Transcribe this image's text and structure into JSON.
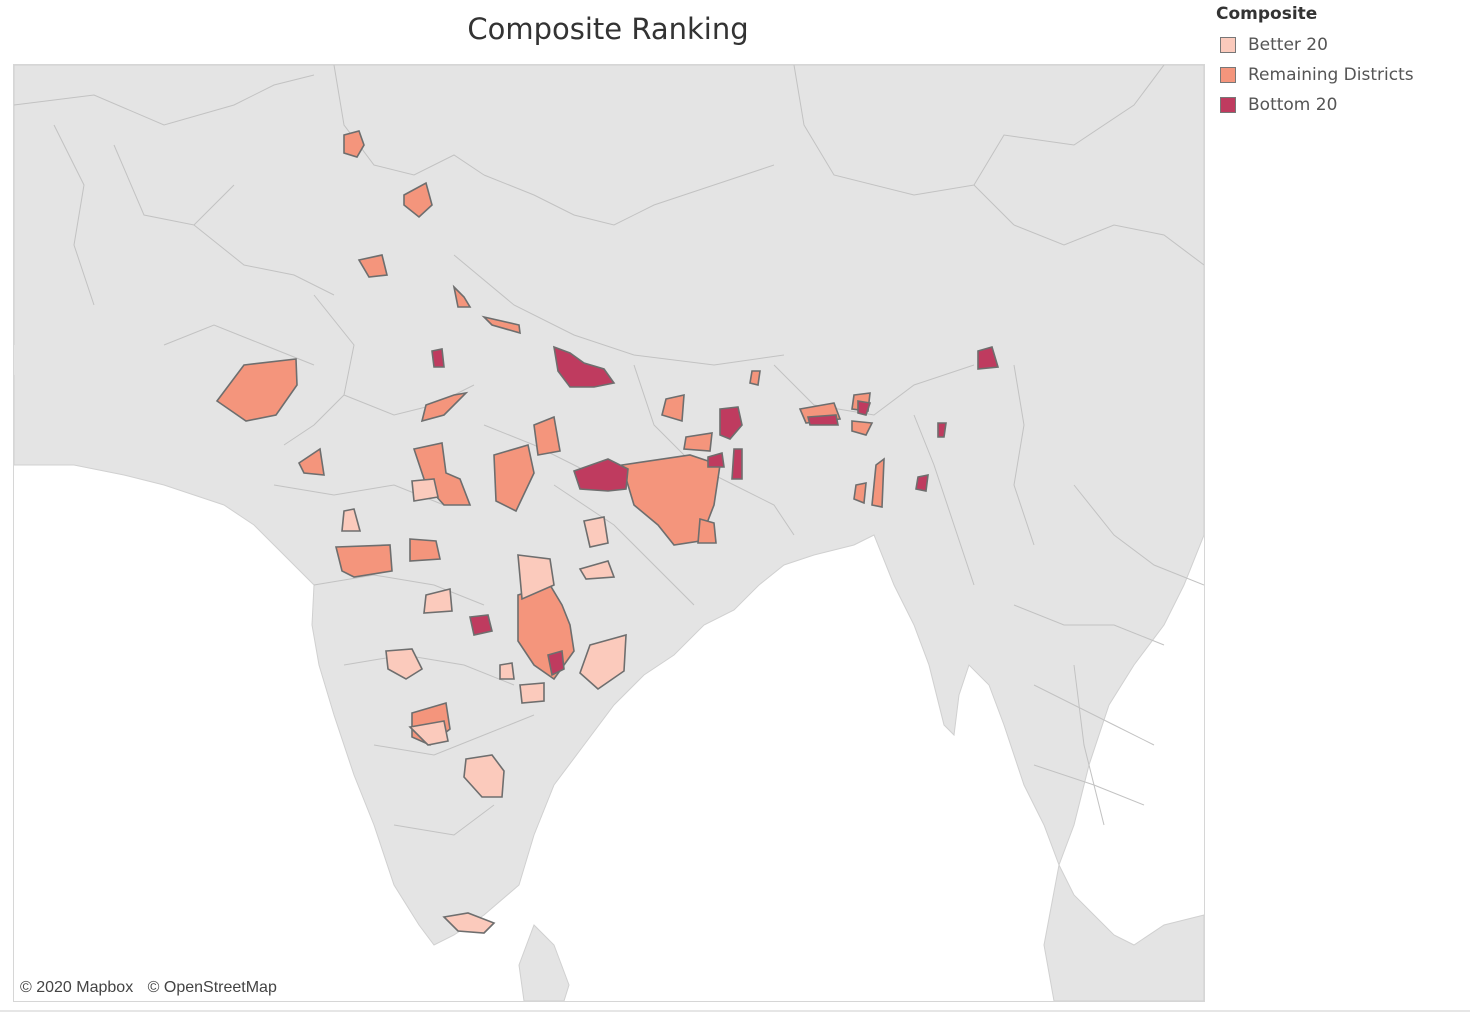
{
  "title": "Composite Ranking",
  "legend": {
    "title": "Composite",
    "items": [
      {
        "label": "Better 20",
        "color": "#fbcabc"
      },
      {
        "label": "Remaining Districts",
        "color": "#f4957c"
      },
      {
        "label": "Bottom 20",
        "color": "#bf3b5f"
      }
    ]
  },
  "map": {
    "land_color": "#e4e4e4",
    "water_color": "#ffffff",
    "attribution": [
      "© 2020 Mapbox",
      "© OpenStreetMap"
    ]
  }
}
